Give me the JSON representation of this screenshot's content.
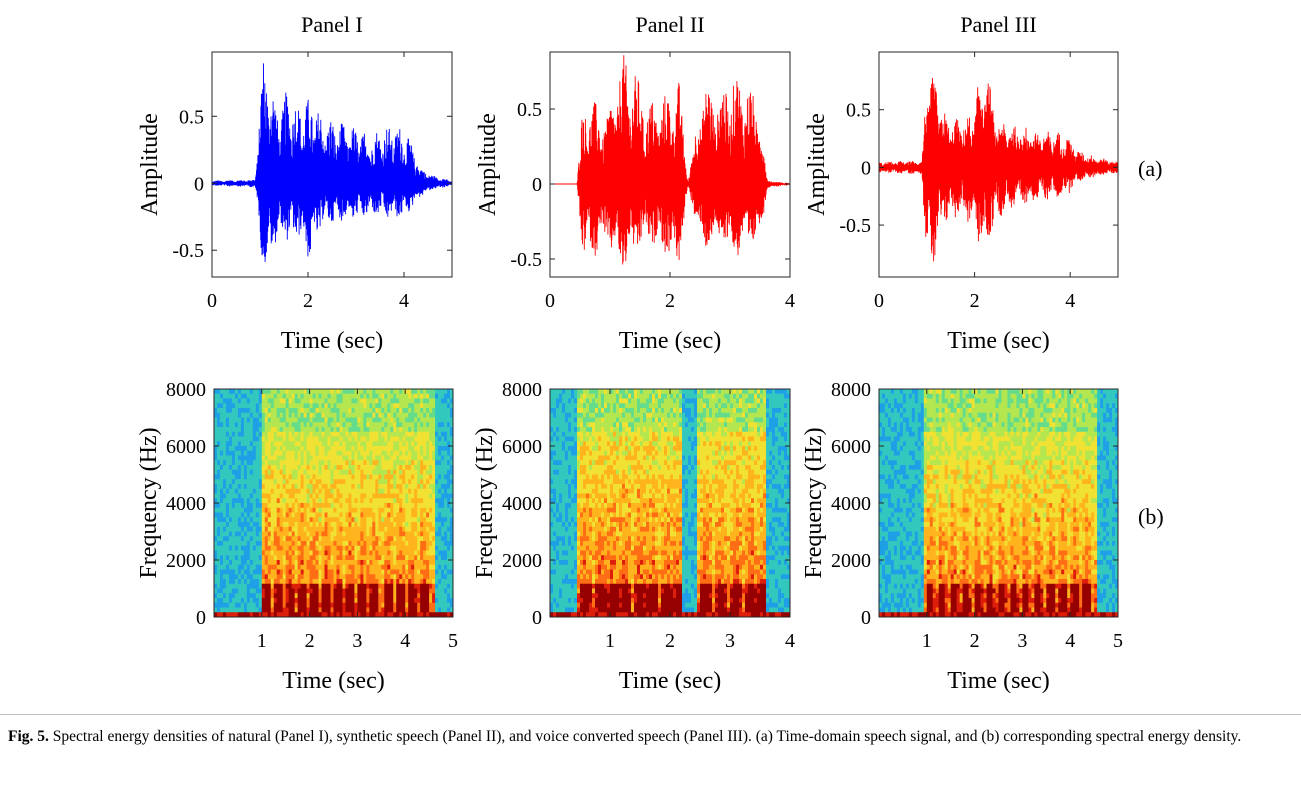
{
  "chart_data": [
    {
      "type": "line",
      "id": "wave-1",
      "panel": "Panel I",
      "title": "Panel I",
      "xlabel": "Time (sec)",
      "ylabel": "Amplitude",
      "xlim": [
        0,
        5
      ],
      "ylim": [
        -0.7,
        0.98
      ],
      "xticks": [
        0,
        2,
        4
      ],
      "xtick_labels": [
        "0",
        "2",
        "4"
      ],
      "yticks": [
        -0.5,
        0,
        0.5
      ],
      "ytick_labels": [
        "-0.5",
        "0",
        "0.5"
      ],
      "color": "#0000ff",
      "series": [
        {
          "name": "Natural speech",
          "envelope": {
            "x": [
              0,
              0.9,
              1.05,
              1.15,
              1.35,
              1.6,
              1.8,
              2.05,
              2.3,
              2.55,
              2.8,
              3.05,
              3.3,
              3.55,
              3.8,
              4.05,
              4.35,
              4.6,
              5.0
            ],
            "upper": [
              0.02,
              0.03,
              0.95,
              0.97,
              0.56,
              0.72,
              0.6,
              0.65,
              0.52,
              0.48,
              0.44,
              0.42,
              0.38,
              0.42,
              0.45,
              0.4,
              0.12,
              0.06,
              0.02
            ],
            "lower": [
              -0.02,
              -0.03,
              -0.62,
              -0.68,
              -0.42,
              -0.45,
              -0.42,
              -0.6,
              -0.32,
              -0.3,
              -0.28,
              -0.28,
              -0.24,
              -0.26,
              -0.28,
              -0.25,
              -0.1,
              -0.05,
              -0.02
            ]
          }
        }
      ]
    },
    {
      "type": "line",
      "id": "wave-2",
      "panel": "Panel II",
      "title": "Panel II",
      "xlabel": "Time (sec)",
      "ylabel": "Amplitude",
      "xlim": [
        0,
        4
      ],
      "ylim": [
        -0.62,
        0.88
      ],
      "xticks": [
        0,
        2,
        4
      ],
      "xtick_labels": [
        "0",
        "2",
        "4"
      ],
      "yticks": [
        -0.5,
        0,
        0.5
      ],
      "ytick_labels": [
        "-0.5",
        "0",
        "0.5"
      ],
      "color": "#ff0000",
      "series": [
        {
          "name": "Synthetic speech",
          "envelope": {
            "x": [
              0,
              0.45,
              0.55,
              0.75,
              0.95,
              1.2,
              1.4,
              1.6,
              1.85,
              2.15,
              2.3,
              2.55,
              2.8,
              3.05,
              3.3,
              3.5,
              3.62,
              4.0
            ],
            "upper": [
              0.0,
              0.0,
              0.57,
              0.55,
              0.45,
              0.88,
              0.8,
              0.55,
              0.58,
              0.7,
              0.02,
              0.7,
              0.62,
              0.75,
              0.7,
              0.52,
              0.03,
              0.0
            ],
            "lower": [
              0.0,
              0.0,
              -0.52,
              -0.48,
              -0.42,
              -0.62,
              -0.5,
              -0.4,
              -0.45,
              -0.58,
              -0.02,
              -0.48,
              -0.4,
              -0.5,
              -0.48,
              -0.38,
              -0.03,
              0.0
            ]
          }
        }
      ]
    },
    {
      "type": "line",
      "id": "wave-3",
      "panel": "Panel III",
      "title": "Panel III",
      "xlabel": "Time (sec)",
      "ylabel": "Amplitude",
      "xlim": [
        0,
        5
      ],
      "ylim": [
        -0.95,
        1.0
      ],
      "xticks": [
        0,
        2,
        4
      ],
      "xtick_labels": [
        "0",
        "2",
        "4"
      ],
      "yticks": [
        -0.5,
        0,
        0.5
      ],
      "ytick_labels": [
        "-0.5",
        "0",
        "0.5"
      ],
      "color": "#ff0000",
      "series": [
        {
          "name": "Voice converted speech",
          "envelope": {
            "x": [
              0,
              0.9,
              1.0,
              1.15,
              1.4,
              1.7,
              1.95,
              2.2,
              2.45,
              2.7,
              3.0,
              3.3,
              3.6,
              3.9,
              4.2,
              4.5,
              4.8,
              5.0
            ],
            "upper": [
              0.05,
              0.06,
              0.85,
              0.8,
              0.45,
              0.42,
              0.48,
              1.0,
              0.42,
              0.4,
              0.38,
              0.34,
              0.32,
              0.3,
              0.14,
              0.1,
              0.07,
              0.05
            ],
            "lower": [
              -0.05,
              -0.06,
              -0.92,
              -0.88,
              -0.5,
              -0.42,
              -0.52,
              -0.8,
              -0.45,
              -0.4,
              -0.35,
              -0.3,
              -0.28,
              -0.26,
              -0.12,
              -0.09,
              -0.06,
              -0.05
            ]
          }
        }
      ]
    },
    {
      "type": "heatmap",
      "id": "spec-1",
      "panel": "Panel I",
      "xlabel": "Time (sec)",
      "ylabel": "Frequency (Hz)",
      "xlim": [
        0,
        5
      ],
      "ylim": [
        0,
        8000
      ],
      "xticks": [
        1,
        2,
        3,
        4,
        5
      ],
      "xtick_labels": [
        "1",
        "2",
        "3",
        "4",
        "5"
      ],
      "yticks": [
        0,
        2000,
        4000,
        6000,
        8000
      ],
      "ytick_labels": [
        "0",
        "2000",
        "4000",
        "6000",
        "8000"
      ],
      "colormap": [
        "#1e64c8",
        "#1fa0e6",
        "#32c8be",
        "#64dc8c",
        "#b4e650",
        "#f0e132",
        "#ffb41e",
        "#ff6e14",
        "#dc1e0a",
        "#960000"
      ],
      "speech_regions": [
        [
          1.0,
          4.65
        ]
      ],
      "syllable_onsets": [
        1.05,
        1.3,
        1.55,
        1.8,
        2.05,
        2.3,
        2.55,
        2.8,
        3.05,
        3.3,
        3.6,
        3.85,
        4.1,
        4.35
      ],
      "formant_energy_max_hz": 5500
    },
    {
      "type": "heatmap",
      "id": "spec-2",
      "panel": "Panel II",
      "xlabel": "Time (sec)",
      "ylabel": "Frequency (Hz)",
      "xlim": [
        0,
        4
      ],
      "ylim": [
        0,
        8000
      ],
      "xticks": [
        1,
        2,
        3,
        4
      ],
      "xtick_labels": [
        "1",
        "2",
        "3",
        "4"
      ],
      "yticks": [
        0,
        2000,
        4000,
        6000,
        8000
      ],
      "ytick_labels": [
        "0",
        "2000",
        "4000",
        "6000",
        "8000"
      ],
      "colormap": [
        "#1e64c8",
        "#1fa0e6",
        "#32c8be",
        "#64dc8c",
        "#b4e650",
        "#f0e132",
        "#ffb41e",
        "#ff6e14",
        "#dc1e0a",
        "#960000"
      ],
      "speech_regions": [
        [
          0.45,
          2.2
        ],
        [
          2.45,
          3.6
        ]
      ],
      "syllable_onsets": [
        0.55,
        0.8,
        1.0,
        1.2,
        1.45,
        1.65,
        1.9,
        2.1,
        2.55,
        2.8,
        3.05,
        3.3,
        3.5
      ],
      "formant_energy_max_hz": 6800
    },
    {
      "type": "heatmap",
      "id": "spec-3",
      "panel": "Panel III",
      "xlabel": "Time (sec)",
      "ylabel": "Frequency (Hz)",
      "xlim": [
        0,
        5
      ],
      "ylim": [
        0,
        8000
      ],
      "xticks": [
        1,
        2,
        3,
        4,
        5
      ],
      "xtick_labels": [
        "1",
        "2",
        "3",
        "4",
        "5"
      ],
      "yticks": [
        0,
        2000,
        4000,
        6000,
        8000
      ],
      "ytick_labels": [
        "0",
        "2000",
        "4000",
        "6000",
        "8000"
      ],
      "colormap": [
        "#1e64c8",
        "#1fa0e6",
        "#32c8be",
        "#64dc8c",
        "#b4e650",
        "#f0e132",
        "#ffb41e",
        "#ff6e14",
        "#dc1e0a",
        "#960000"
      ],
      "speech_regions": [
        [
          0.95,
          4.55
        ]
      ],
      "syllable_onsets": [
        1.0,
        1.25,
        1.5,
        1.75,
        2.0,
        2.25,
        2.5,
        2.75,
        3.0,
        3.25,
        3.55,
        3.8,
        4.05,
        4.3
      ],
      "formant_energy_max_hz": 5500
    }
  ],
  "row_labels": {
    "a": "(a)",
    "b": "(b)"
  },
  "caption": {
    "label": "Fig. 5.",
    "text": " Spectral energy densities of natural (Panel I), synthetic speech (Panel II), and voice converted speech (Panel III). (a) Time-domain speech signal, and (b) corresponding spectral energy density."
  }
}
